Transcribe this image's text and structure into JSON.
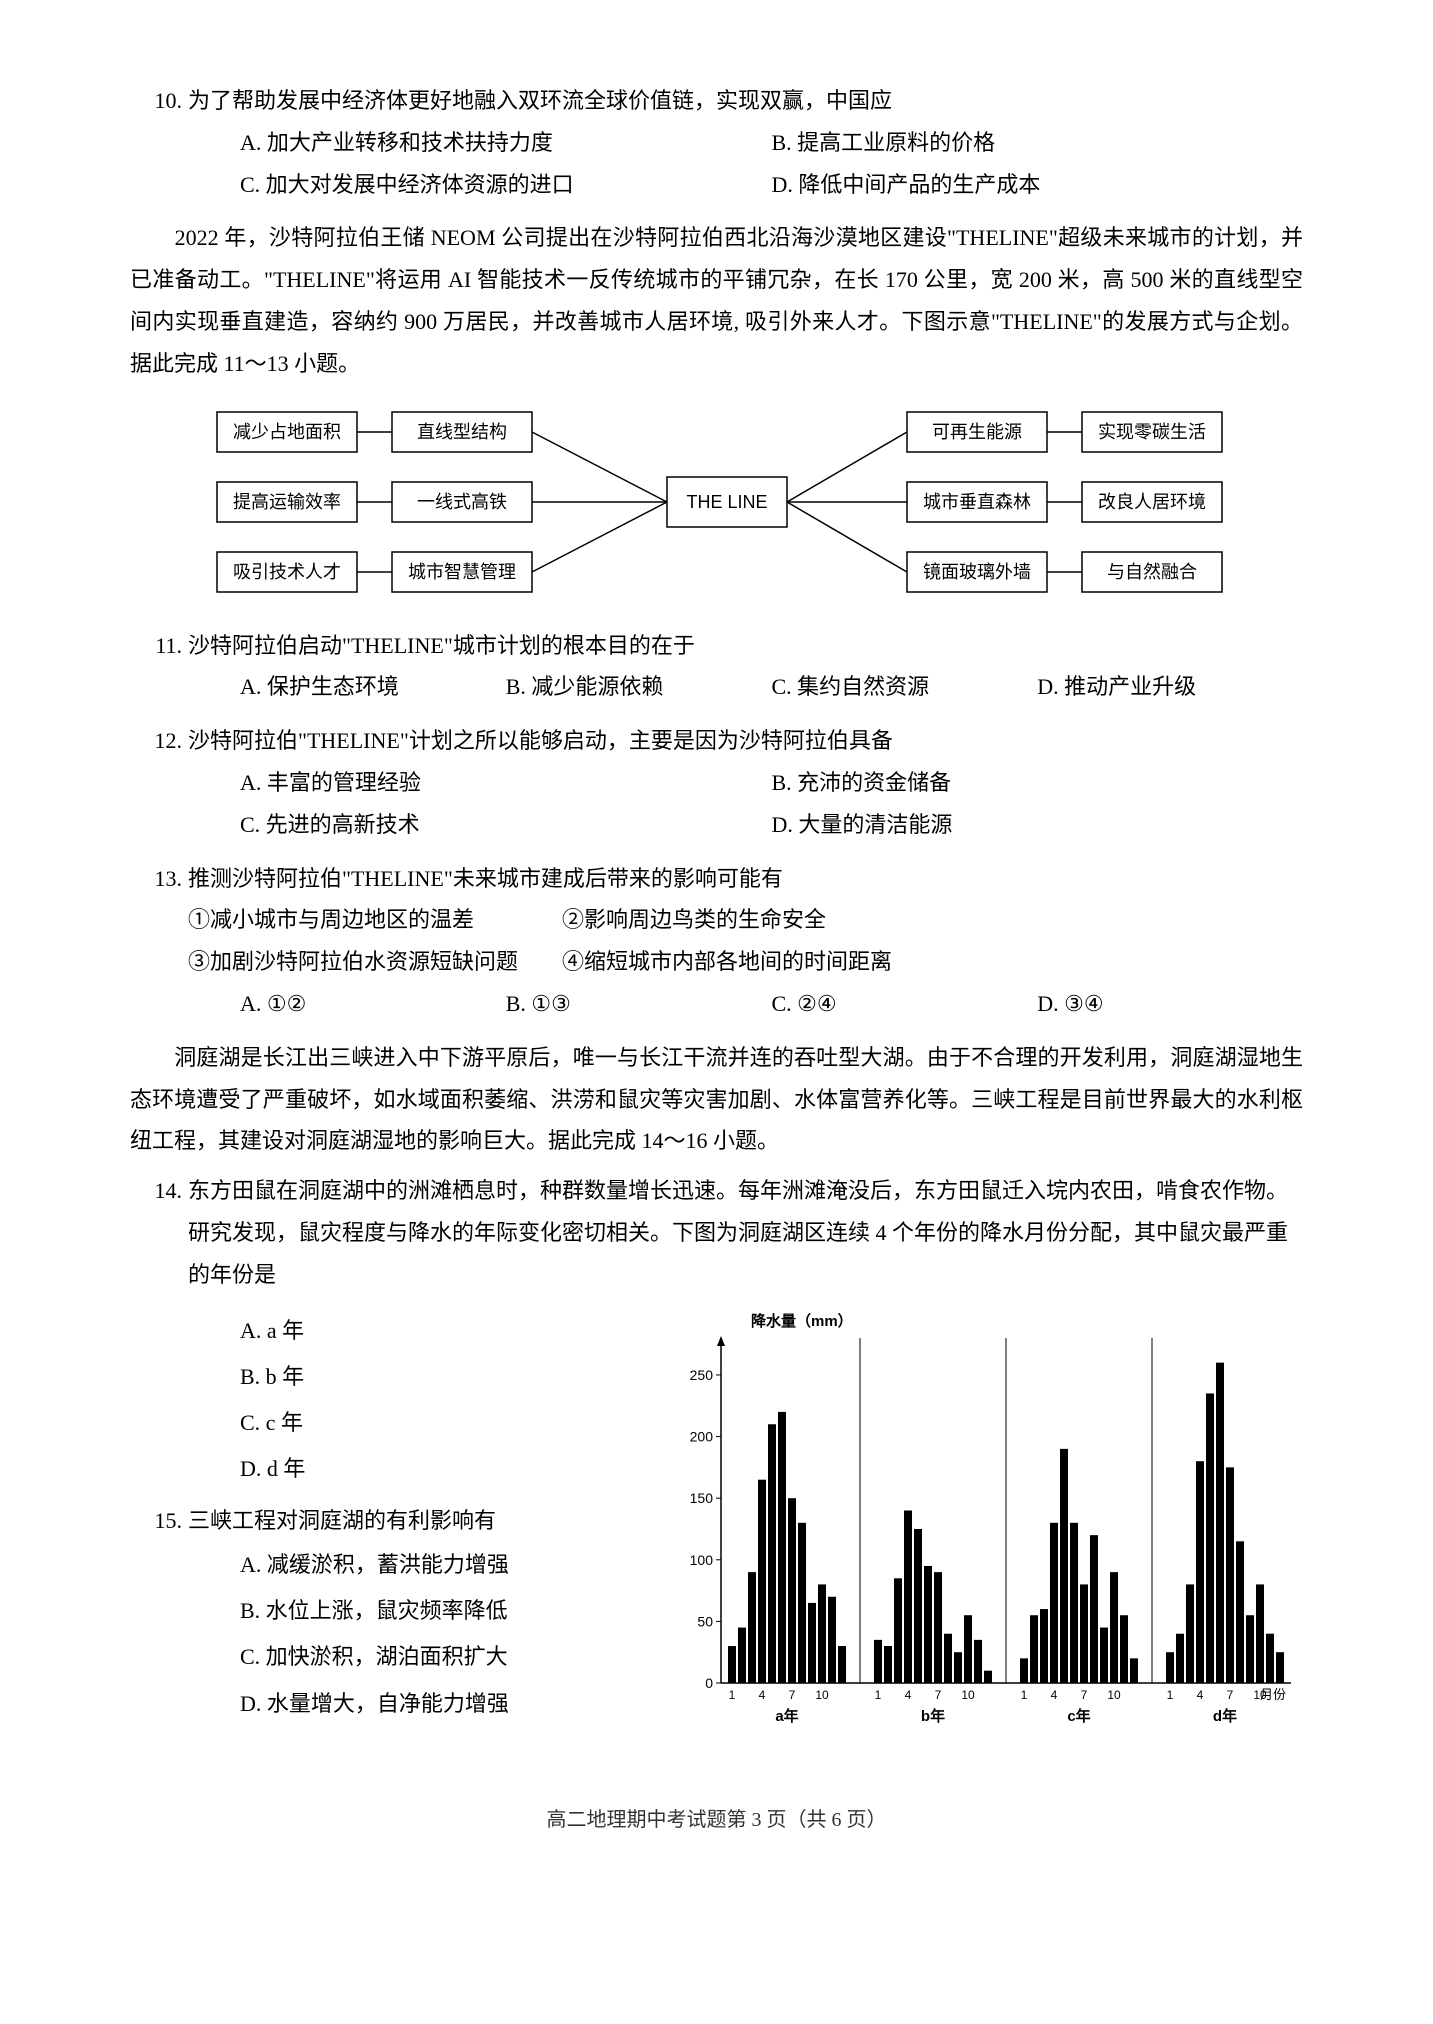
{
  "q10": {
    "num": "10.",
    "text": "为了帮助发展中经济体更好地融入双环流全球价值链，实现双赢，中国应",
    "A": "A. 加大产业转移和技术扶持力度",
    "B": "B. 提高工业原料的价格",
    "C": "C. 加大对发展中经济体资源的进口",
    "D": "D. 降低中间产品的生产成本"
  },
  "passage1": "　　2022 年，沙特阿拉伯王储 NEOM 公司提出在沙特阿拉伯西北沿海沙漠地区建设\"THELINE\"超级未来城市的计划，并已准备动工。\"THELINE\"将运用 AI 智能技术一反传统城市的平铺冗杂，在长 170 公里，宽 200 米，高 500 米的直线型空间内实现垂直建造，容纳约 900 万居民，并改善城市人居环境, 吸引外来人才。下图示意\"THELINE\"的发展方式与企划。据此完成 11～13 小题。",
  "diagram1": {
    "left_outer": [
      "减少占地面积",
      "提高运输效率",
      "吸引技术人才"
    ],
    "left_inner": [
      "直线型结构",
      "一线式高铁",
      "城市智慧管理"
    ],
    "center": "THE LINE",
    "right_inner": [
      "可再生能源",
      "城市垂直森林",
      "镜面玻璃外墙"
    ],
    "right_outer": [
      "实现零碳生活",
      "改良人居环境",
      "与自然融合"
    ],
    "box_border": "#000000",
    "box_bg": "#ffffff"
  },
  "q11": {
    "num": "11.",
    "text": "沙特阿拉伯启动\"THELINE\"城市计划的根本目的在于",
    "A": "A. 保护生态环境",
    "B": "B. 减少能源依赖",
    "C": "C. 集约自然资源",
    "D": "D. 推动产业升级"
  },
  "q12": {
    "num": "12.",
    "text": "沙特阿拉伯\"THELINE\"计划之所以能够启动，主要是因为沙特阿拉伯具备",
    "A": "A. 丰富的管理经验",
    "B": "B. 充沛的资金储备",
    "C": "C. 先进的高新技术",
    "D": "D. 大量的清洁能源"
  },
  "q13": {
    "num": "13.",
    "text": "推测沙特阿拉伯\"THELINE\"未来城市建成后带来的影响可能有",
    "lines": [
      "①减小城市与周边地区的温差　　　　②影响周边鸟类的生命安全",
      "③加剧沙特阿拉伯水资源短缺问题　　④缩短城市内部各地间的时间距离"
    ],
    "A": "A. ①②",
    "B": "B. ①③",
    "C": "C. ②④",
    "D": "D. ③④"
  },
  "passage2": "　　洞庭湖是长江出三峡进入中下游平原后，唯一与长江干流并连的吞吐型大湖。由于不合理的开发利用，洞庭湖湿地生态环境遭受了严重破坏，如水域面积萎缩、洪涝和鼠灾等灾害加剧、水体富营养化等。三峡工程是目前世界最大的水利枢纽工程，其建设对洞庭湖湿地的影响巨大。据此完成 14～16 小题。",
  "q14": {
    "num": "14.",
    "text": "东方田鼠在洞庭湖中的洲滩栖息时，种群数量增长迅速。每年洲滩淹没后，东方田鼠迁入垸内农田，啃食农作物。研究发现，鼠灾程度与降水的年际变化密切相关。下图为洞庭湖区连续 4 个年份的降水月份分配，其中鼠灾最严重的年份是",
    "A": "A. a 年",
    "B": "B. b 年",
    "C": "C. c 年",
    "D": "D. d 年"
  },
  "q15": {
    "num": "15.",
    "text": "三峡工程对洞庭湖的有利影响有",
    "A": "A. 减缓淤积，蓄洪能力增强",
    "B": "B. 水位上涨，鼠灾频率降低",
    "C": "C. 加快淤积，湖泊面积扩大",
    "D": "D. 水量增大，自净能力增强"
  },
  "chart": {
    "title": "降水量（mm）",
    "y_max": 280,
    "y_ticks": [
      0,
      50,
      100,
      150,
      200,
      250
    ],
    "x_labels_major": [
      "a年",
      "b年",
      "c年",
      "d年"
    ],
    "x_ticks_minor": [
      "1",
      "4",
      "7",
      "10"
    ],
    "x_axis_label": "月份",
    "bar_color": "#000000",
    "axis_color": "#000000",
    "grid_color": "#ffffff",
    "years": {
      "a": [
        30,
        45,
        90,
        165,
        210,
        220,
        150,
        130,
        65,
        80,
        70,
        30
      ],
      "b": [
        35,
        30,
        85,
        140,
        125,
        95,
        90,
        40,
        25,
        55,
        35,
        10
      ],
      "c": [
        20,
        55,
        60,
        130,
        190,
        130,
        80,
        120,
        45,
        90,
        55,
        20
      ],
      "d": [
        25,
        40,
        80,
        180,
        235,
        260,
        175,
        115,
        55,
        80,
        40,
        25
      ]
    }
  },
  "footer": "高二地理期中考试题第 3 页（共 6 页）"
}
